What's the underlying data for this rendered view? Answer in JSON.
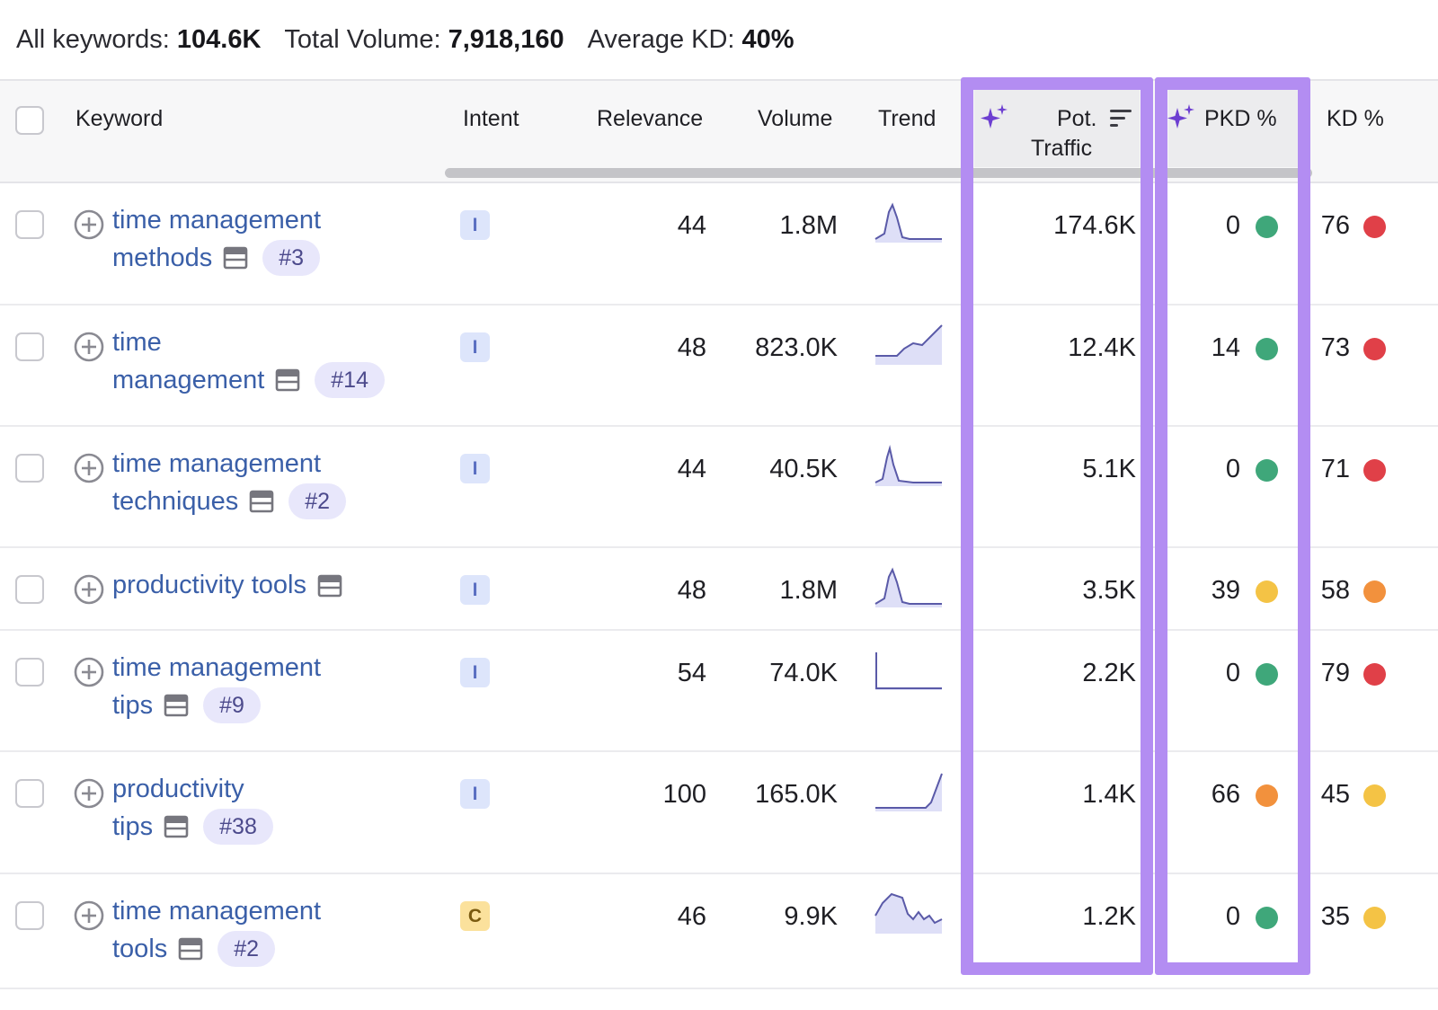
{
  "summary": {
    "all_keywords_label": "All keywords:",
    "all_keywords_value": "104.6K",
    "total_volume_label": "Total Volume:",
    "total_volume_value": "7,918,160",
    "average_kd_label": "Average KD:",
    "average_kd_value": "40%"
  },
  "header": {
    "keyword": "Keyword",
    "intent": "Intent",
    "relevance": "Relevance",
    "volume": "Volume",
    "trend": "Trend",
    "pot_traffic_line1": "Pot.",
    "pot_traffic_line2": "Traffic",
    "pkd": "PKD %",
    "kd": "KD %"
  },
  "colors": {
    "green": "#3fa77a",
    "yellow": "#f4c345",
    "orange": "#f2913d",
    "red": "#e04048",
    "highlight": "#b38df2",
    "link": "#3a5fa8",
    "sparkle": "#6d3fd1"
  },
  "rows": [
    {
      "kw1": "time management",
      "kw2": "methods",
      "pos": "#3",
      "intent": "I",
      "relevance": "44",
      "volume": "1.8M",
      "trend": "peak-early",
      "pot": "174.6K",
      "pkd": "0",
      "pkd_color": "green",
      "kd": "76",
      "kd_color": "red"
    },
    {
      "kw1": "time",
      "kw2": "management",
      "pos": "#14",
      "intent": "I",
      "relevance": "48",
      "volume": "823.0K",
      "trend": "rising",
      "pot": "12.4K",
      "pkd": "14",
      "pkd_color": "green",
      "kd": "73",
      "kd_color": "red"
    },
    {
      "kw1": "time management",
      "kw2": "techniques",
      "pos": "#2",
      "intent": "I",
      "relevance": "44",
      "volume": "40.5K",
      "trend": "spike-early",
      "pot": "5.1K",
      "pkd": "0",
      "pkd_color": "green",
      "kd": "71",
      "kd_color": "red"
    },
    {
      "kw1": "productivity tools",
      "kw2": "",
      "pos": "",
      "intent": "I",
      "relevance": "48",
      "volume": "1.8M",
      "trend": "peak-early",
      "pot": "3.5K",
      "pkd": "39",
      "pkd_color": "yellow",
      "kd": "58",
      "kd_color": "orange"
    },
    {
      "kw1": "time management",
      "kw2": "tips",
      "pos": "#9",
      "intent": "I",
      "relevance": "54",
      "volume": "74.0K",
      "trend": "drop-start",
      "pot": "2.2K",
      "pkd": "0",
      "pkd_color": "green",
      "kd": "79",
      "kd_color": "red"
    },
    {
      "kw1": "productivity",
      "kw2": "tips",
      "pos": "#38",
      "intent": "I",
      "relevance": "100",
      "volume": "165.0K",
      "trend": "rise-end",
      "pot": "1.4K",
      "pkd": "66",
      "pkd_color": "orange",
      "kd": "45",
      "kd_color": "yellow"
    },
    {
      "kw1": "time management",
      "kw2": "tools",
      "pos": "#2",
      "intent": "C",
      "relevance": "46",
      "volume": "9.9K",
      "trend": "plateau-wave",
      "pot": "1.2K",
      "pkd": "0",
      "pkd_color": "green",
      "kd": "35",
      "kd_color": "yellow"
    }
  ]
}
